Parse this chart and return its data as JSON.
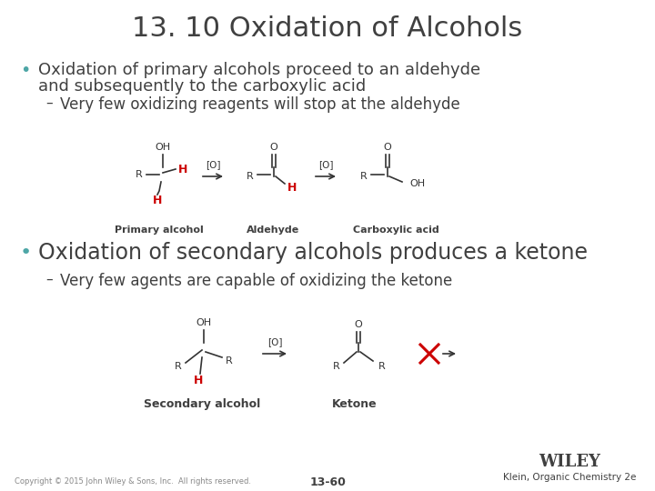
{
  "title": "13. 10 Oxidation of Alcohols",
  "bullet1_line1": "Oxidation of primary alcohols proceed to an aldehyde",
  "bullet1_line2": "and subsequently to the carboxylic acid",
  "sub1": "Very few oxidizing reagents will stop at the aldehyde",
  "bullet2": "Oxidation of secondary alcohols produces a ketone",
  "sub2": "Very few agents are capable of oxidizing the ketone",
  "label_primary": "Primary alcohol",
  "label_aldehyde": "Aldehyde",
  "label_carboxylic": "Carboxylic acid",
  "label_secondary": "Secondary alcohol",
  "label_ketone": "Ketone",
  "copyright": "Copyright © 2015 John Wiley & Sons, Inc.  All rights reserved.",
  "page_num": "13-60",
  "publisher": "WILEY",
  "credit": "Klein, Organic Chemistry 2e",
  "bg_color": "#ffffff",
  "title_color": "#404040",
  "text_color": "#404040",
  "bullet_color": "#4da6a6",
  "red_color": "#cc0000",
  "struct_color": "#333333",
  "title_fontsize": 22,
  "bullet1_fontsize": 13,
  "bullet2_fontsize": 17,
  "sub_fontsize": 12,
  "label_fontsize": 8,
  "struct_fontsize": 8
}
